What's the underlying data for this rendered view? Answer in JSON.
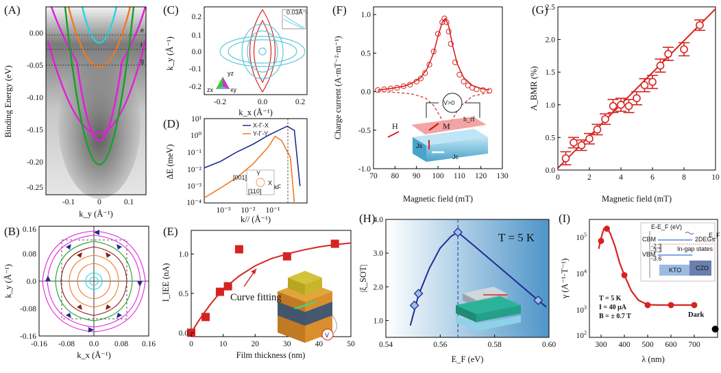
{
  "figure": {
    "colors": {
      "red": "#d62320",
      "navy": "#1f2b8f",
      "orange": "#f07a20",
      "magenta": "#e020d8",
      "green": "#1aa02a",
      "cyan": "#20d8e0",
      "lightblue": "#5bc7d8",
      "blue": "#2060c0"
    },
    "icons": [
      "arrow-icon",
      "voltage-source-icon",
      "rotation-arrows-icon"
    ]
  },
  "panels": {
    "A": {
      "label": "(A)",
      "ylabel": "Binding Energy (eV)",
      "xlabel": "k_y (Å⁻¹)",
      "yticks": [
        "0.00",
        "-0.05",
        "-0.10",
        "-0.15",
        "-0.20",
        "-0.25"
      ],
      "xticks": [
        "-0.1",
        "0",
        "0.1"
      ],
      "lines": [
        "e",
        "f",
        "g"
      ]
    },
    "B": {
      "label": "(B)",
      "ylabel": "k_y (Å⁻¹)",
      "xlabel": "k_x (Å⁻¹)",
      "yticks": [
        "0.16",
        "0.08",
        "0.0",
        "-0.08",
        "-0.16"
      ],
      "xticks": [
        "-0.16",
        "-0.08",
        "0.0",
        "0.08",
        "0.16"
      ]
    },
    "C": {
      "label": "(C)",
      "ylabel": "k_y (Å⁻¹)",
      "xlabel": "k_x (Å⁻¹)",
      "yticks": [
        "0.2",
        "0.1",
        "0.0",
        "-0.1",
        "-0.2"
      ],
      "xticks": [
        "-0.2",
        "0.0",
        "0.2"
      ],
      "inset": "0.03Å⁻¹",
      "orbitals": [
        "yz",
        "zx",
        "xy"
      ]
    },
    "D": {
      "label": "(D)",
      "ylabel": "ΔE (meV)",
      "xlabel": "k// (Å⁻¹)",
      "yticks": [
        "10¹",
        "10⁰",
        "10⁻¹",
        "10⁻²",
        "10⁻³",
        "10⁻⁴"
      ],
      "xticks": [
        "10⁻³",
        "10⁻²",
        "10⁻¹"
      ],
      "legend": [
        "X-Γ-X",
        "Y-Γ-Y"
      ],
      "inset": {
        "y": "Y",
        "x": "X",
        "kf": "kF",
        "dir1": "[001]",
        "dir2": "[110]"
      }
    },
    "E": {
      "label": "(E)",
      "ylabel": "I_IEE (nA)",
      "xlabel": "Film thickness (nm)",
      "annotation": "Curve fitting",
      "volt": "V"
    },
    "F": {
      "label": "(F)",
      "ylabel": "Charge current (A·mT⁻²·m⁻¹)",
      "xlabel": "Magnetic field (mT)",
      "annot": {
        "v": "V>0",
        "h": "H",
        "m": "M",
        "hrf": "h_rf",
        "js": "Js",
        "jc": "Jc"
      }
    },
    "G": {
      "label": "(G)",
      "ylabel": "A_BMR (%)",
      "xlabel": "Magnetic field (mT)"
    },
    "H": {
      "label": "(H)",
      "ylabel": "|ξ_SOT|",
      "xlabel": "E_F (eV)",
      "temp": "T = 5 K"
    },
    "I": {
      "label": "(I)",
      "ylabel": "γ (A⁻¹·T⁻¹)",
      "xlabel": "λ (nm)",
      "notes": [
        "T = 5 K",
        "I = 40 μA",
        "B = ± 0.7 T"
      ],
      "dark": "Dark",
      "inset": {
        "axis": "E-E_F (eV)",
        "cbm": "CBM",
        "vbm": "VBM",
        "twodeg": "2DEGs",
        "ef": "E_F",
        "ingap": "In-gap states",
        "kto": "KTO",
        "czo": "CZO",
        "v1": "-2.3",
        "v2": "-3.3",
        "v3": "-3.6"
      }
    }
  },
  "chart_data": [
    {
      "panel": "E",
      "type": "scatter",
      "title": "",
      "xlabel": "Film thickness (nm)",
      "ylabel": "I_IEE (nA)",
      "xlim": [
        0,
        50
      ],
      "ylim": [
        -0.05,
        1.3
      ],
      "xticks": [
        0,
        10,
        20,
        30,
        40,
        50
      ],
      "yticks": [
        0.0,
        0.5,
        1.0
      ],
      "series": [
        {
          "name": "data",
          "x": [
            0,
            4.5,
            9,
            11.5,
            15,
            30,
            45
          ],
          "y": [
            0.0,
            0.2,
            0.52,
            0.59,
            1.06,
            0.97,
            1.13
          ]
        },
        {
          "name": "fit",
          "x": [
            0,
            2,
            4,
            6,
            8,
            10,
            12,
            15,
            20,
            25,
            30,
            35,
            40,
            45,
            50
          ],
          "y": [
            0.0,
            0.13,
            0.25,
            0.36,
            0.46,
            0.54,
            0.62,
            0.72,
            0.85,
            0.94,
            1.0,
            1.05,
            1.09,
            1.12,
            1.14
          ]
        }
      ]
    },
    {
      "panel": "F",
      "type": "line",
      "xlabel": "Magnetic field (mT)",
      "ylabel": "Charge current (A·mT⁻²·m⁻¹)",
      "xlim": [
        70,
        130
      ],
      "ylim": [
        -1.0,
        1.1
      ],
      "xticks": [
        70,
        80,
        90,
        100,
        110,
        120,
        130
      ],
      "yticks": [
        -1.0,
        -0.5,
        0.0,
        0.5,
        1.0
      ],
      "series": [
        {
          "name": "data",
          "x": [
            72,
            75,
            78,
            81,
            84,
            87,
            90,
            92,
            94,
            96,
            98,
            100,
            102,
            103,
            104,
            105,
            106,
            108,
            110,
            112,
            114,
            116,
            118,
            121,
            124
          ],
          "y": [
            0.02,
            0.03,
            0.04,
            0.05,
            0.07,
            0.09,
            0.13,
            0.17,
            0.24,
            0.35,
            0.52,
            0.75,
            0.9,
            0.95,
            0.9,
            0.78,
            0.62,
            0.38,
            0.22,
            0.13,
            0.08,
            0.05,
            0.03,
            0.02,
            0.01
          ]
        },
        {
          "name": "fit-symmetric",
          "x": [
            72,
            78,
            84,
            88,
            92,
            95,
            98,
            100,
            102,
            103.5,
            105,
            107,
            109,
            112,
            116,
            120,
            124
          ],
          "y": [
            0.02,
            0.04,
            0.07,
            0.11,
            0.18,
            0.3,
            0.5,
            0.72,
            0.9,
            0.95,
            0.85,
            0.58,
            0.36,
            0.18,
            0.08,
            0.04,
            0.02
          ]
        },
        {
          "name": "fit-antisymmetric",
          "x": [
            72,
            80,
            88,
            94,
            98,
            101,
            103,
            105,
            107,
            110,
            116,
            124
          ],
          "y": [
            0.0,
            -0.01,
            -0.03,
            -0.08,
            -0.18,
            -0.32,
            -0.42,
            -0.45,
            -0.35,
            -0.2,
            -0.06,
            -0.01
          ]
        }
      ]
    },
    {
      "panel": "G",
      "type": "scatter",
      "xlabel": "Magnetic field (mT)",
      "ylabel": "A_BMR (%)",
      "xlim": [
        0,
        10
      ],
      "ylim": [
        0,
        2.5
      ],
      "xticks": [
        0,
        2,
        4,
        6,
        8,
        10
      ],
      "yticks": [
        0.0,
        0.5,
        1.0,
        1.5,
        2.0,
        2.5
      ],
      "series": [
        {
          "name": "data",
          "x": [
            0.5,
            1.0,
            1.5,
            2.0,
            2.5,
            3.0,
            3.5,
            4.0,
            4.5,
            5.0,
            5.5,
            6.0,
            6.5,
            7.0,
            8.0,
            9.0
          ],
          "y": [
            0.18,
            0.42,
            0.38,
            0.48,
            0.62,
            0.78,
            0.98,
            1.0,
            0.98,
            1.1,
            1.3,
            1.35,
            1.6,
            1.78,
            1.85,
            2.22
          ],
          "err": [
            0.1,
            0.08,
            0.08,
            0.08,
            0.08,
            0.08,
            0.1,
            0.1,
            0.1,
            0.1,
            0.1,
            0.1,
            0.1,
            0.1,
            0.1,
            0.08
          ]
        },
        {
          "name": "fit",
          "x": [
            0,
            10
          ],
          "y": [
            0.03,
            2.47
          ]
        }
      ]
    },
    {
      "panel": "H",
      "type": "line",
      "xlabel": "E_F (eV)",
      "ylabel": "|ξ_SOT|",
      "xlim": [
        0.54,
        0.6
      ],
      "ylim": [
        0.5,
        4.0
      ],
      "xticks": [
        0.54,
        0.56,
        0.58,
        0.6
      ],
      "yticks": [
        1.0,
        2.0,
        3.0,
        4.0
      ],
      "series": [
        {
          "name": "data",
          "x": [
            0.5505,
            0.552,
            0.5665,
            0.596
          ],
          "y": [
            1.45,
            1.8,
            3.62,
            1.6
          ]
        },
        {
          "name": "fit",
          "x": [
            0.549,
            0.552,
            0.556,
            0.56,
            0.564,
            0.5665,
            0.572,
            0.58,
            0.588,
            0.596,
            0.599
          ],
          "y": [
            0.85,
            1.75,
            2.55,
            3.15,
            3.5,
            3.62,
            3.25,
            2.7,
            2.15,
            1.6,
            1.4
          ]
        }
      ],
      "vline": 0.5665
    },
    {
      "panel": "I",
      "type": "line",
      "xlabel": "λ (nm)",
      "ylabel": "γ (A⁻¹·T⁻¹)",
      "yscale": "log",
      "xlim": [
        250,
        800
      ],
      "ylim": [
        100,
        200000
      ],
      "xticks": [
        300,
        400,
        500,
        600,
        700
      ],
      "yticks": [
        100,
        1000,
        10000,
        100000
      ],
      "series": [
        {
          "name": "data",
          "x": [
            300,
            325,
            400,
            500,
            600,
            700
          ],
          "y": [
            50000,
            110000,
            5500,
            800,
            800,
            800
          ]
        },
        {
          "name": "fit",
          "x": [
            290,
            300,
            312,
            325,
            340,
            360,
            380,
            400,
            430,
            460,
            500,
            550,
            600,
            650,
            700
          ],
          "y": [
            30000,
            60000,
            110000,
            115000,
            80000,
            35000,
            12000,
            5500,
            2000,
            1100,
            820,
            800,
            800,
            800,
            800
          ]
        },
        {
          "name": "dark",
          "x": [
            790
          ],
          "y": [
            170
          ]
        }
      ]
    },
    {
      "panel": "D",
      "type": "line",
      "xlabel": "k// (Å⁻¹)",
      "ylabel": "ΔE (meV)",
      "xscale": "log",
      "yscale": "log",
      "xlim": [
        0.0003,
        0.5
      ],
      "ylim": [
        0.0001,
        10
      ],
      "series": [
        {
          "name": "X-Γ-X",
          "x": [
            0.0003,
            0.001,
            0.003,
            0.01,
            0.03,
            0.07,
            0.12,
            0.2,
            0.3
          ],
          "y": [
            0.012,
            0.03,
            0.1,
            0.3,
            1.0,
            2.2,
            3.5,
            2.0,
            0.001
          ]
        },
        {
          "name": "Y-Γ-Y",
          "x": [
            0.0003,
            0.001,
            0.003,
            0.01,
            0.03,
            0.05,
            0.08,
            0.15,
            0.2
          ],
          "y": [
            0.0002,
            0.0008,
            0.003,
            0.02,
            0.2,
            0.9,
            0.5,
            0.05,
            0.0001
          ]
        }
      ]
    }
  ]
}
